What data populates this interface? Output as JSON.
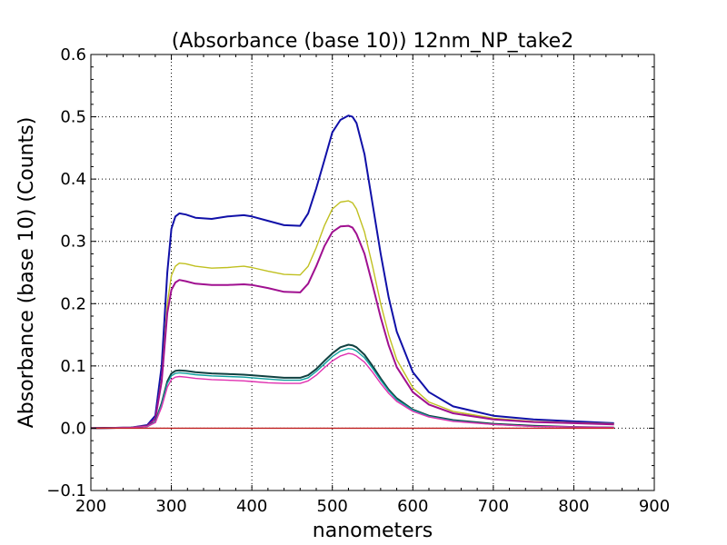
{
  "chart_data": {
    "type": "line",
    "title": "(Absorbance (base 10)) 12nm_NP_take2",
    "xlabel": "nanometers",
    "ylabel": "Absorbance (base 10) (Counts)",
    "xlim": [
      200,
      900
    ],
    "ylim": [
      -0.1,
      0.6
    ],
    "xticks": [
      200,
      300,
      400,
      500,
      600,
      700,
      800,
      900
    ],
    "yticks": [
      -0.1,
      0.0,
      0.1,
      0.2,
      0.3,
      0.4,
      0.5,
      0.6
    ],
    "xtick_labels": [
      "200",
      "300",
      "400",
      "500",
      "600",
      "700",
      "800",
      "900"
    ],
    "ytick_labels": [
      "−0.1",
      "0.0",
      "0.1",
      "0.2",
      "0.3",
      "0.4",
      "0.5",
      "0.6"
    ],
    "grid": true,
    "grid_style": "dotted",
    "legend": "none",
    "series": [
      {
        "color": "#1010a8",
        "x": [
          200,
          250,
          270,
          280,
          288,
          295,
          300,
          305,
          310,
          318,
          330,
          350,
          370,
          390,
          400,
          420,
          440,
          460,
          470,
          480,
          490,
          500,
          510,
          520,
          525,
          530,
          540,
          550,
          560,
          570,
          580,
          600,
          620,
          650,
          700,
          750,
          800,
          850
        ],
        "y": [
          0.0,
          0.001,
          0.005,
          0.02,
          0.1,
          0.25,
          0.32,
          0.34,
          0.345,
          0.343,
          0.338,
          0.336,
          0.34,
          0.342,
          0.34,
          0.333,
          0.326,
          0.325,
          0.345,
          0.385,
          0.43,
          0.475,
          0.495,
          0.502,
          0.5,
          0.49,
          0.44,
          0.36,
          0.28,
          0.21,
          0.155,
          0.09,
          0.058,
          0.035,
          0.02,
          0.014,
          0.011,
          0.008
        ]
      },
      {
        "color": "#c0c020",
        "x": [
          200,
          250,
          270,
          280,
          288,
          295,
          300,
          305,
          310,
          318,
          330,
          350,
          370,
          390,
          400,
          420,
          440,
          460,
          470,
          480,
          490,
          500,
          510,
          520,
          525,
          530,
          540,
          550,
          560,
          570,
          580,
          600,
          620,
          650,
          700,
          750,
          800,
          850
        ],
        "y": [
          0.0,
          0.001,
          0.004,
          0.015,
          0.08,
          0.2,
          0.245,
          0.26,
          0.265,
          0.264,
          0.26,
          0.257,
          0.258,
          0.26,
          0.258,
          0.252,
          0.247,
          0.246,
          0.26,
          0.29,
          0.325,
          0.352,
          0.363,
          0.365,
          0.362,
          0.352,
          0.315,
          0.26,
          0.2,
          0.15,
          0.11,
          0.065,
          0.042,
          0.027,
          0.016,
          0.011,
          0.009,
          0.007
        ]
      },
      {
        "color": "#a01090",
        "x": [
          200,
          250,
          270,
          280,
          288,
          295,
          300,
          305,
          310,
          318,
          330,
          350,
          370,
          390,
          400,
          420,
          440,
          460,
          470,
          480,
          490,
          500,
          510,
          520,
          525,
          530,
          540,
          550,
          560,
          570,
          580,
          600,
          620,
          650,
          700,
          750,
          800,
          850
        ],
        "y": [
          0.0,
          0.001,
          0.004,
          0.015,
          0.075,
          0.185,
          0.222,
          0.234,
          0.238,
          0.236,
          0.232,
          0.23,
          0.23,
          0.231,
          0.23,
          0.225,
          0.219,
          0.218,
          0.232,
          0.26,
          0.292,
          0.315,
          0.324,
          0.325,
          0.322,
          0.312,
          0.28,
          0.23,
          0.178,
          0.133,
          0.098,
          0.058,
          0.038,
          0.024,
          0.014,
          0.01,
          0.008,
          0.006
        ]
      },
      {
        "color": "#104040",
        "x": [
          200,
          250,
          270,
          280,
          288,
          295,
          300,
          305,
          310,
          318,
          330,
          350,
          370,
          390,
          400,
          420,
          440,
          460,
          470,
          480,
          490,
          500,
          510,
          520,
          525,
          530,
          540,
          550,
          560,
          570,
          580,
          600,
          620,
          650,
          700,
          750,
          800,
          850
        ],
        "y": [
          0.0,
          0.001,
          0.003,
          0.01,
          0.04,
          0.075,
          0.088,
          0.092,
          0.093,
          0.092,
          0.09,
          0.088,
          0.087,
          0.086,
          0.085,
          0.083,
          0.081,
          0.081,
          0.085,
          0.095,
          0.108,
          0.12,
          0.13,
          0.134,
          0.133,
          0.13,
          0.118,
          0.1,
          0.08,
          0.062,
          0.048,
          0.03,
          0.02,
          0.013,
          0.007,
          0.004,
          0.002,
          0.001
        ]
      },
      {
        "color": "#10a0a0",
        "x": [
          200,
          250,
          270,
          280,
          288,
          295,
          300,
          305,
          310,
          318,
          330,
          350,
          370,
          390,
          400,
          420,
          440,
          460,
          470,
          480,
          490,
          500,
          510,
          520,
          525,
          530,
          540,
          550,
          560,
          570,
          580,
          600,
          620,
          650,
          700,
          750,
          800,
          850
        ],
        "y": [
          0.0,
          0.001,
          0.003,
          0.01,
          0.038,
          0.072,
          0.084,
          0.088,
          0.089,
          0.088,
          0.086,
          0.084,
          0.083,
          0.082,
          0.081,
          0.079,
          0.077,
          0.077,
          0.081,
          0.091,
          0.103,
          0.115,
          0.124,
          0.128,
          0.127,
          0.124,
          0.113,
          0.096,
          0.077,
          0.06,
          0.046,
          0.029,
          0.019,
          0.012,
          0.006,
          0.003,
          0.002,
          0.001
        ]
      },
      {
        "color": "#e030b0",
        "x": [
          200,
          250,
          270,
          280,
          288,
          295,
          300,
          305,
          310,
          318,
          330,
          350,
          370,
          390,
          400,
          420,
          440,
          460,
          470,
          480,
          490,
          500,
          510,
          520,
          525,
          530,
          540,
          550,
          560,
          570,
          580,
          600,
          620,
          650,
          700,
          750,
          800,
          850
        ],
        "y": [
          0.0,
          0.001,
          0.003,
          0.009,
          0.034,
          0.066,
          0.078,
          0.082,
          0.083,
          0.082,
          0.08,
          0.078,
          0.077,
          0.076,
          0.075,
          0.073,
          0.072,
          0.072,
          0.076,
          0.085,
          0.097,
          0.108,
          0.116,
          0.12,
          0.119,
          0.116,
          0.106,
          0.09,
          0.072,
          0.056,
          0.043,
          0.027,
          0.018,
          0.011,
          0.006,
          0.003,
          0.002,
          0.001
        ]
      },
      {
        "color": "#c02020",
        "x": [
          200,
          300,
          400,
          500,
          600,
          700,
          800,
          850
        ],
        "y": [
          0.0,
          0.0,
          0.0,
          0.0,
          0.0,
          0.0,
          0.0,
          0.0
        ]
      }
    ]
  }
}
